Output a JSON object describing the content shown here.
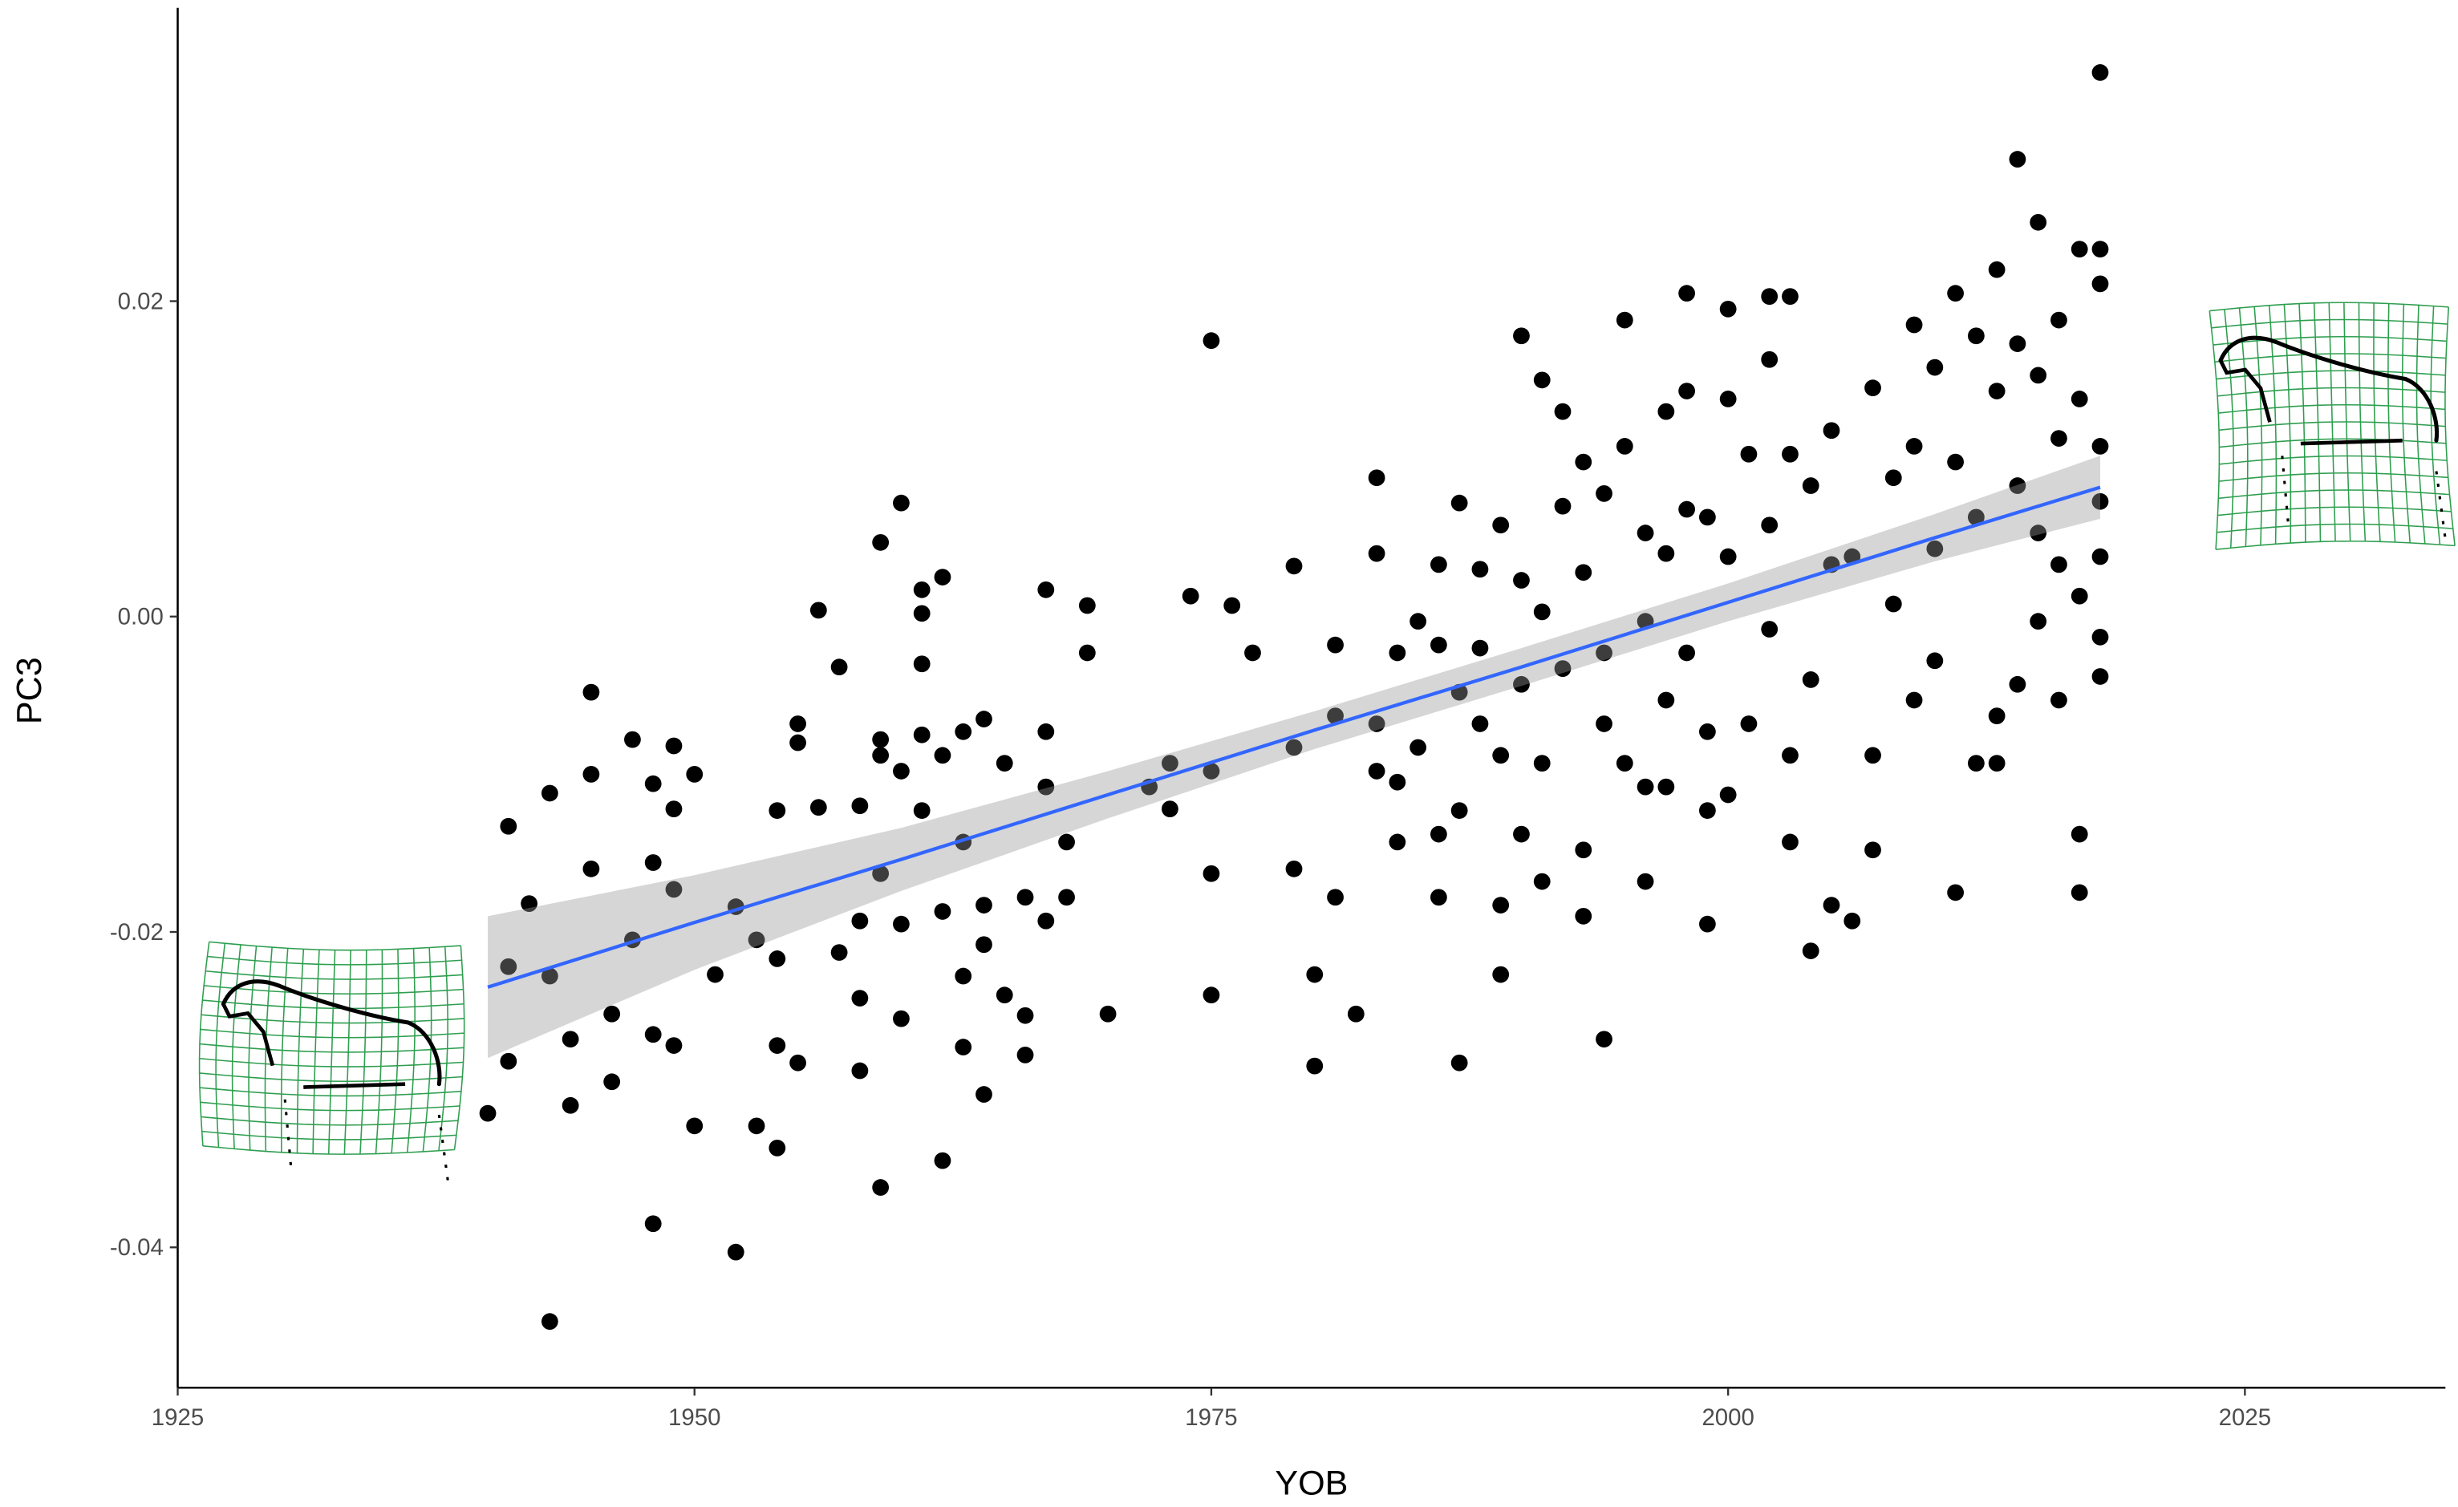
{
  "chart_data": {
    "type": "scatter",
    "xlabel": "YOB",
    "ylabel": "PC3",
    "xlim": [
      1925,
      2034.7
    ],
    "ylim": [
      -0.0489,
      0.0386
    ],
    "xticks": [
      1925,
      1950,
      1975,
      2000,
      2025
    ],
    "yticks": [
      -0.04,
      -0.02,
      {
        "value": 0,
        "label": "0.00"
      },
      0.02
    ],
    "color": "#000000",
    "x": [
      1940,
      1941,
      1941,
      1941,
      1942,
      1943,
      1943,
      1943,
      1944,
      1944,
      1945,
      1945,
      1945,
      1946,
      1946,
      1947,
      1947,
      1948,
      1948,
      1948,
      1948,
      1949,
      1949,
      1949,
      1949,
      1950,
      1950,
      1951,
      1952,
      1952,
      1953,
      1953,
      1954,
      1954,
      1954,
      1954,
      1955,
      1955,
      1955,
      1956,
      1956,
      1957,
      1957,
      1958,
      1958,
      1958,
      1958,
      1959,
      1959,
      1959,
      1959,
      1959,
      1960,
      1960,
      1960,
      1960,
      1961,
      1961,
      1961,
      1961,
      1961,
      1962,
      1962,
      1962,
      1962,
      1963,
      1963,
      1963,
      1963,
      1964,
      1964,
      1964,
      1964,
      1965,
      1965,
      1966,
      1966,
      1966,
      1967,
      1967,
      1967,
      1967,
      1968,
      1968,
      1969,
      1969,
      1970,
      1972,
      1973,
      1973,
      1974,
      1975,
      1975,
      1975,
      1975,
      1976,
      1977,
      1979,
      1979,
      1979,
      1980,
      1980,
      1981,
      1981,
      1981,
      1982,
      1983,
      1983,
      1983,
      1983,
      1984,
      1984,
      1984,
      1985,
      1985,
      1986,
      1986,
      1986,
      1986,
      1987,
      1987,
      1987,
      1987,
      1988,
      1988,
      1988,
      1989,
      1989,
      1989,
      1989,
      1990,
      1990,
      1990,
      1990,
      1991,
      1991,
      1991,
      1991,
      1992,
      1992,
      1992,
      1993,
      1993,
      1993,
      1993,
      1994,
      1994,
      1994,
      1994,
      1995,
      1995,
      1995,
      1996,
      1996,
      1996,
      1996,
      1997,
      1997,
      1997,
      1997,
      1998,
      1998,
      1998,
      1998,
      1999,
      1999,
      1999,
      1999,
      2000,
      2000,
      2000,
      2000,
      2001,
      2001,
      2002,
      2002,
      2002,
      2002,
      2003,
      2003,
      2003,
      2003,
      2004,
      2004,
      2004,
      2005,
      2005,
      2005,
      2006,
      2006,
      2007,
      2007,
      2007,
      2008,
      2008,
      2009,
      2009,
      2009,
      2010,
      2010,
      2010,
      2011,
      2011,
      2011,
      2012,
      2012,
      2012,
      2013,
      2013,
      2013,
      2013,
      2014,
      2014,
      2014,
      2014,
      2015,
      2015,
      2015,
      2015,
      2016,
      2016,
      2016,
      2016,
      2017,
      2017,
      2017,
      2017,
      2017,
      2018,
      2018,
      2018,
      2018,
      2018,
      2018,
      2018,
      2018
    ],
    "values": [
      -0.0315,
      -0.0133,
      -0.0222,
      -0.0282,
      -0.0182,
      -0.0112,
      -0.0228,
      -0.0447,
      -0.0268,
      -0.031,
      -0.0048,
      -0.016,
      -0.01,
      -0.0295,
      -0.0252,
      -0.0078,
      -0.0205,
      -0.0106,
      -0.0156,
      -0.0265,
      -0.0385,
      -0.0082,
      -0.0122,
      -0.0173,
      -0.0272,
      -0.01,
      -0.0323,
      -0.0227,
      -0.0184,
      -0.0403,
      -0.0205,
      -0.0323,
      -0.0123,
      -0.0217,
      -0.0272,
      -0.0337,
      -0.0068,
      -0.008,
      -0.0283,
      0.0004,
      -0.0121,
      -0.0032,
      -0.0213,
      -0.012,
      -0.0193,
      -0.0242,
      -0.0288,
      0.0047,
      -0.0078,
      -0.0088,
      -0.0163,
      -0.0362,
      0.0072,
      -0.0098,
      -0.0195,
      -0.0255,
      0.0002,
      0.0017,
      -0.003,
      -0.0075,
      -0.0123,
      0.0025,
      -0.0088,
      -0.0187,
      -0.0345,
      -0.0073,
      -0.0143,
      -0.0228,
      -0.0273,
      -0.0065,
      -0.0183,
      -0.0208,
      -0.0303,
      -0.0093,
      -0.024,
      -0.0178,
      -0.0253,
      -0.0278,
      0.0017,
      -0.0073,
      -0.0108,
      -0.0193,
      -0.0143,
      -0.0178,
      0.0007,
      -0.0023,
      -0.0252,
      -0.0108,
      -0.0093,
      -0.0122,
      0.0013,
      0.0175,
      -0.0098,
      -0.0163,
      -0.024,
      0.0007,
      -0.0023,
      0.0032,
      -0.0083,
      -0.016,
      -0.0227,
      -0.0285,
      -0.0018,
      -0.0063,
      -0.0178,
      -0.0252,
      0.0088,
      0.004,
      -0.0068,
      -0.0098,
      -0.0023,
      -0.0143,
      -0.0105,
      -0.0003,
      -0.0083,
      0.0033,
      -0.0018,
      -0.0138,
      -0.0178,
      0.0072,
      -0.0048,
      -0.0123,
      -0.0283,
      0.003,
      -0.002,
      -0.0068,
      0.0058,
      -0.0088,
      -0.0183,
      -0.0227,
      0.0178,
      0.0023,
      -0.0043,
      -0.0138,
      0.015,
      0.0003,
      -0.0093,
      -0.0168,
      0.013,
      0.007,
      -0.0033,
      0.0098,
      0.0028,
      -0.0148,
      -0.019,
      0.0078,
      -0.0023,
      -0.0068,
      -0.0268,
      0.0188,
      0.0108,
      -0.0093,
      0.0053,
      -0.0003,
      -0.0108,
      -0.0168,
      0.013,
      0.004,
      -0.0053,
      -0.0108,
      0.0205,
      0.0143,
      0.0068,
      -0.0023,
      0.0063,
      -0.0073,
      -0.0123,
      -0.0195,
      0.0195,
      0.0138,
      0.0038,
      -0.0113,
      0.0103,
      -0.0068,
      0.0203,
      0.0163,
      0.0058,
      -0.0008,
      0.0203,
      0.0103,
      -0.0088,
      -0.0143,
      0.0083,
      -0.004,
      -0.0212,
      0.0118,
      0.0033,
      -0.0183,
      0.0038,
      -0.0193,
      0.0145,
      -0.0088,
      -0.0148,
      0.0088,
      0.0008,
      0.0185,
      0.0108,
      -0.0053,
      0.0158,
      0.0043,
      -0.0028,
      0.0205,
      0.0098,
      -0.0175,
      0.0178,
      0.0063,
      -0.0093,
      0.022,
      0.0143,
      -0.0063,
      -0.0093,
      0.029,
      0.0173,
      0.0083,
      -0.0043,
      0.025,
      0.0153,
      0.0053,
      -0.0003,
      0.0188,
      0.0113,
      0.0033,
      -0.0053,
      0.0233,
      0.0138,
      0.0013,
      -0.0138,
      -0.0175,
      0.0345,
      0.0233,
      0.0211,
      0.0108,
      0.0073,
      0.0038,
      -0.0013,
      -0.0038
    ],
    "smooth": {
      "color": "#3366ff",
      "x": [
        1940,
        1950,
        1960,
        1970,
        1980,
        1990,
        2000,
        2010,
        2018
      ],
      "values": [
        -0.0235,
        -0.0194,
        -0.0154,
        -0.0113,
        -0.0072,
        -0.0032,
        0.0009,
        0.005,
        0.0082
      ],
      "lower": [
        -0.028,
        -0.0224,
        -0.0174,
        -0.0128,
        -0.0084,
        -0.0044,
        -0.0003,
        0.0035,
        0.0062
      ],
      "upper": [
        -0.019,
        -0.0164,
        -0.0134,
        -0.0098,
        -0.006,
        -0.002,
        0.0021,
        0.0065,
        0.0102
      ]
    }
  }
}
